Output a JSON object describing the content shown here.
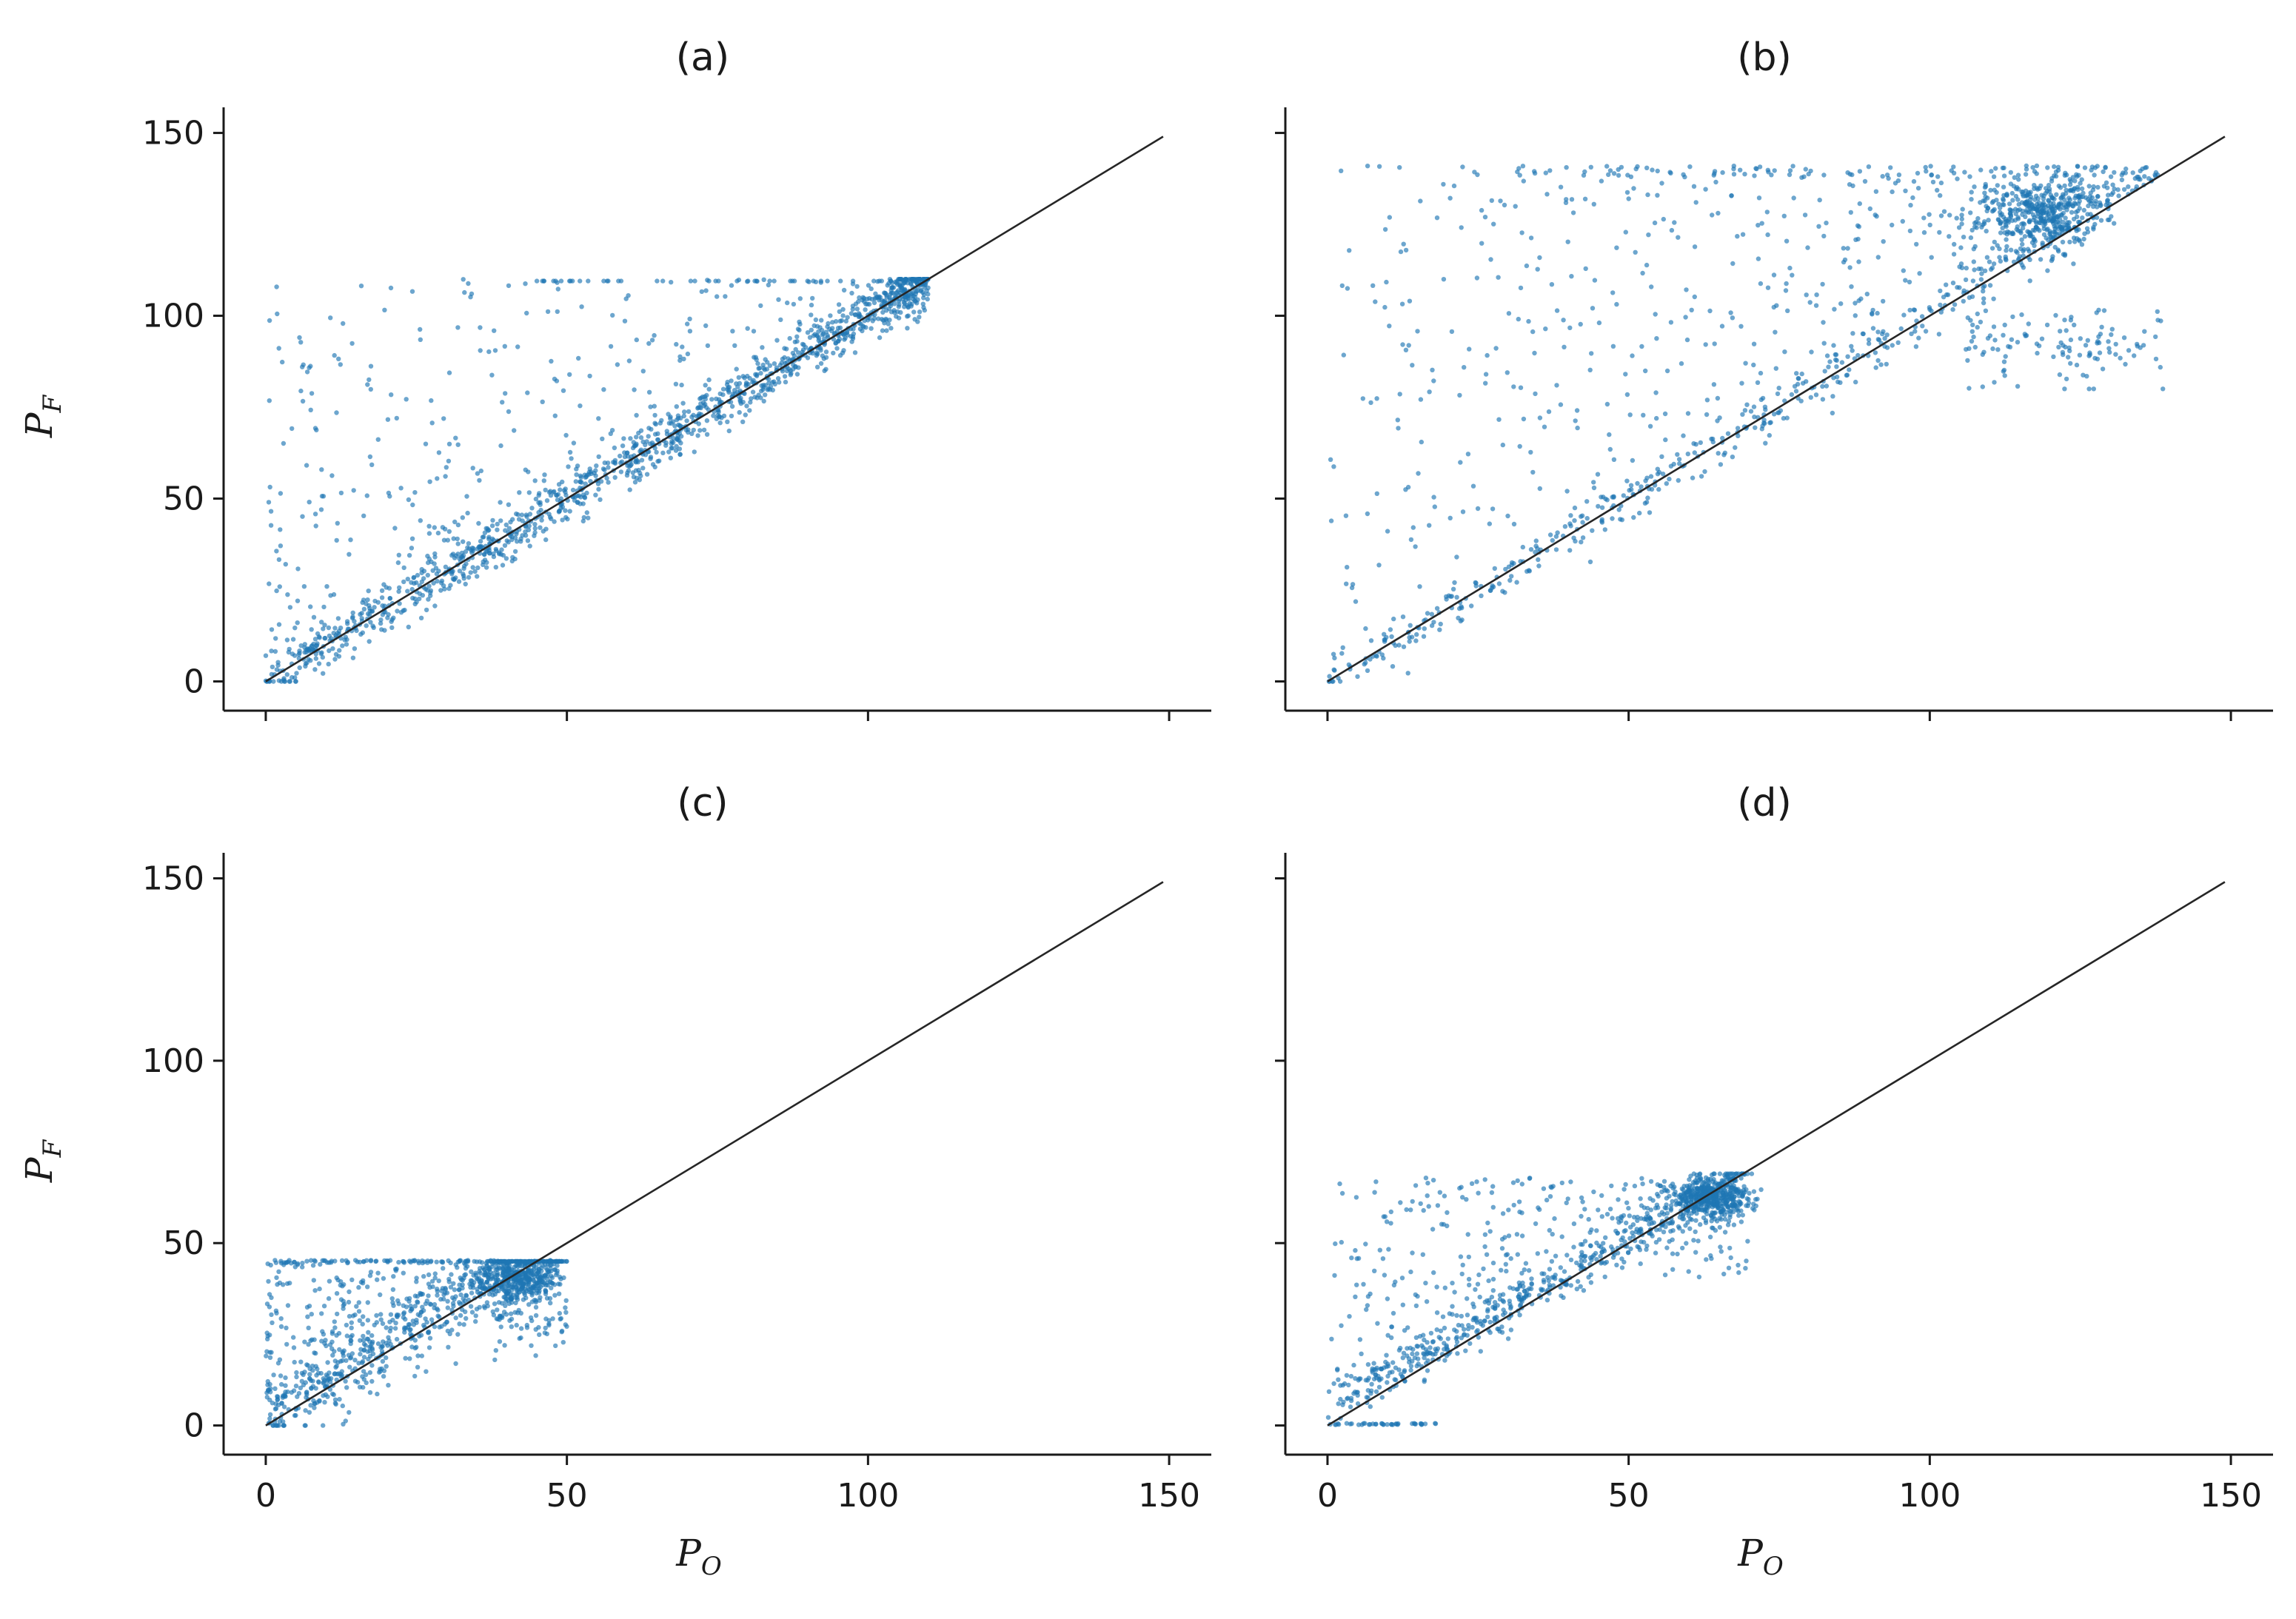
{
  "figure": {
    "panels": [
      "a",
      "b",
      "c",
      "d"
    ]
  },
  "chart_data": [
    {
      "id": "a",
      "type": "scatter",
      "title": "(a)",
      "xlabel": "",
      "ylabel_main": "P",
      "ylabel_sub": "F",
      "xlim": [
        -7,
        157
      ],
      "ylim": [
        -8,
        157
      ],
      "xticks": [
        0,
        50,
        100,
        150
      ],
      "yticks": [
        0,
        50,
        100,
        150
      ],
      "show_x_tick_labels": false,
      "show_y_tick_labels": true,
      "identity_line": [
        [
          0,
          0
        ],
        [
          149,
          149
        ]
      ],
      "color": "#1f77b4",
      "points_summary": {
        "n": 1500,
        "x_range": [
          0,
          110
        ],
        "cap": 110,
        "description": "dense along identity line, upper-left scatter capped at 110"
      }
    },
    {
      "id": "b",
      "type": "scatter",
      "title": "(b)",
      "xlabel": "",
      "ylabel_main": "",
      "ylabel_sub": "",
      "xlim": [
        -7,
        157
      ],
      "ylim": [
        -8,
        157
      ],
      "xticks": [
        0,
        50,
        100,
        150
      ],
      "yticks": [
        0,
        50,
        100,
        150
      ],
      "show_x_tick_labels": false,
      "show_y_tick_labels": false,
      "identity_line": [
        [
          0,
          0
        ],
        [
          149,
          149
        ]
      ],
      "color": "#1f77b4",
      "points_summary": {
        "n": 1500,
        "x_range": [
          0,
          140
        ],
        "cap": 141,
        "description": "wide scatter above identity, dense cluster near (120, 130), group below near (120, 90)"
      }
    },
    {
      "id": "c",
      "type": "scatter",
      "title": "(c)",
      "xlabel_main": "",
      "xlabel_sub": "",
      "ylabel_main": "P",
      "ylabel_sub": "F",
      "xlim": [
        -7,
        157
      ],
      "ylim": [
        -8,
        157
      ],
      "xticks": [
        0,
        50,
        100,
        150
      ],
      "yticks": [
        0,
        50,
        100,
        150
      ],
      "xtick_labels": [
        "0",
        "50",
        "100",
        "150"
      ],
      "show_x_tick_labels": true,
      "show_y_tick_labels": true,
      "identity_line": [
        [
          0,
          0
        ],
        [
          149,
          149
        ]
      ],
      "color": "#1f77b4",
      "points_summary": {
        "n": 1300,
        "x_range": [
          0,
          50
        ],
        "cap": 45,
        "description": "points clustered below 50, dense cluster near (42, 40), capped at 45"
      }
    },
    {
      "id": "d",
      "type": "scatter",
      "title": "(d)",
      "xlabel_main": "P",
      "xlabel_sub": "O",
      "ylabel_main": "",
      "ylabel_sub": "",
      "xlim": [
        -7,
        157
      ],
      "ylim": [
        -8,
        157
      ],
      "xticks": [
        0,
        50,
        100,
        150
      ],
      "yticks": [
        0,
        50,
        100,
        150
      ],
      "xtick_labels": [
        "0",
        "50",
        "100",
        "150"
      ],
      "show_x_tick_labels": true,
      "show_y_tick_labels": false,
      "identity_line": [
        [
          0,
          0
        ],
        [
          149,
          149
        ]
      ],
      "color": "#1f77b4",
      "points_summary": {
        "n": 1400,
        "x_range": [
          0,
          72
        ],
        "cap": 69,
        "description": "points lie slightly above identity, dense cluster near (65, 62), capped at 69"
      }
    }
  ],
  "texts": {
    "title_a": "(a)",
    "title_b": "(b)",
    "title_c": "(c)",
    "title_d": "(d)",
    "ylabel_main": "P",
    "ylabel_sub": "F",
    "xlabel_main": "P",
    "xlabel_sub": "O",
    "ytick_labels": [
      "0",
      "50",
      "100",
      "150"
    ],
    "xtick_labels": [
      "0",
      "50",
      "100",
      "150"
    ]
  }
}
